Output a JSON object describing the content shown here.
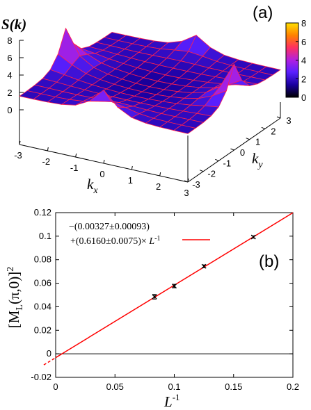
{
  "chart_data": [
    {
      "panel": "(a)",
      "type": "surface",
      "zlabel_prefix": "S(",
      "zlabel_var": "k",
      "zlabel_suffix": ")",
      "xlabel_main": "k",
      "xlabel_sub": "x",
      "ylabel_main": "k",
      "ylabel_sub": "y",
      "x_ticks": [
        "-3",
        "-2",
        "-1",
        "0",
        "1",
        "2",
        "3"
      ],
      "y_ticks": [
        "-3",
        "-2",
        "-1",
        "0",
        "1",
        "2",
        "3"
      ],
      "z_ticks": [
        "0",
        "2",
        "4",
        "6",
        "8"
      ],
      "zlim": [
        0,
        8
      ],
      "colorbar_ticks": [
        "0",
        "2",
        "4",
        "6",
        "8"
      ],
      "colorbar_colors": [
        "#000000",
        "#1a00a0",
        "#5a20ff",
        "#b020e0",
        "#ff3060",
        "#ff8000",
        "#ffe000"
      ],
      "mesh_color": "#ff2050",
      "peaks": [
        {
          "kx": -3.14,
          "ky": 0,
          "value": 7.5
        },
        {
          "kx": 3.14,
          "ky": 0,
          "value": 7.8
        },
        {
          "kx": 0,
          "ky": -3.14,
          "value": 5.6
        },
        {
          "kx": 0,
          "ky": 3.14,
          "value": 4.0
        }
      ],
      "background_level": 1.2
    },
    {
      "panel": "(b)",
      "type": "scatter",
      "ylabel_pre": "[M",
      "ylabel_sub": "L",
      "ylabel_post": "(π,0)]",
      "ylabel_sup": "2",
      "xlabel_main": "L",
      "xlabel_sup": "-1",
      "xlim": [
        0,
        0.2
      ],
      "ylim": [
        -0.02,
        0.12
      ],
      "x_ticks": [
        "0",
        "0.05",
        "0.1",
        "0.15",
        "0.2"
      ],
      "y_ticks": [
        "-0.02",
        "0",
        "0.02",
        "0.04",
        "0.06",
        "0.08",
        "0.1",
        "0.12"
      ],
      "grid": false,
      "legend_position": "top-left",
      "legend_line1": "−(0.00327±0.00093)",
      "legend_line2_pre": "+(0.6160±0.0075)× ",
      "legend_line2_var": "L",
      "legend_line2_sup": "-1",
      "fit": {
        "intercept": -0.00327,
        "slope": 0.616,
        "color": "#ff0000"
      },
      "points": [
        {
          "x": 0.0833,
          "y": 0.0485,
          "err": 0.002
        },
        {
          "x": 0.1,
          "y": 0.0576,
          "err": 0.0015
        },
        {
          "x": 0.125,
          "y": 0.0744,
          "err": 0.0012
        },
        {
          "x": 0.1667,
          "y": 0.0993,
          "err": 0.001
        }
      ]
    }
  ]
}
